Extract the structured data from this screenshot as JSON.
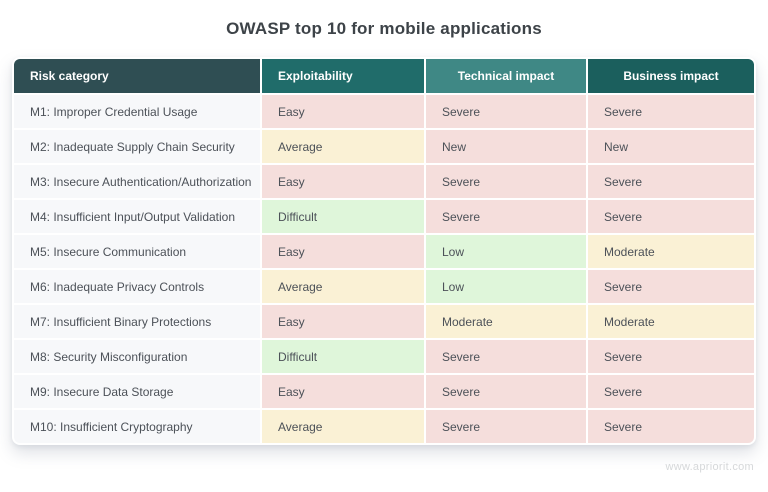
{
  "title": "OWASP top 10 for mobile applications",
  "watermark": "www.apriorit.com",
  "colors": {
    "page_bg": "#FFFFFF",
    "title_text": "#3D4348",
    "header_text": "#FFFFFF",
    "body_text": "#4C5158",
    "row_label_bg": "#F7F8FA",
    "header_bg": [
      "#2F4E53",
      "#206C6A",
      "#3F8885",
      "#1B5F5D"
    ],
    "severity": {
      "Easy": "#F5DEDC",
      "Average": "#FAF1D5",
      "Difficult": "#DFF6DA",
      "Severe": "#F5DEDC",
      "New": "#F5DEDC",
      "Low": "#DFF6DA",
      "Moderate": "#FAF1D5"
    }
  },
  "chart_data": {
    "type": "table",
    "title": "OWASP top 10 for mobile applications",
    "columns": [
      "Risk category",
      "Exploitability",
      "Technical impact",
      "Business impact"
    ],
    "rows": [
      [
        "M1: Improper Credential Usage",
        "Easy",
        "Severe",
        "Severe"
      ],
      [
        "M2: Inadequate Supply Chain Security",
        "Average",
        "New",
        "New"
      ],
      [
        "M3: Insecure Authentication/Authorization",
        "Easy",
        "Severe",
        "Severe"
      ],
      [
        "M4: Insufficient Input/Output Validation",
        "Difficult",
        "Severe",
        "Severe"
      ],
      [
        "M5: Insecure Communication",
        "Easy",
        "Low",
        "Moderate"
      ],
      [
        "M6: Inadequate Privacy Controls",
        "Average",
        "Low",
        "Severe"
      ],
      [
        "M7: Insufficient Binary Protections",
        "Easy",
        "Moderate",
        "Moderate"
      ],
      [
        "M8: Security Misconfiguration",
        "Difficult",
        "Severe",
        "Severe"
      ],
      [
        "M9: Insecure Data Storage",
        "Easy",
        "Severe",
        "Severe"
      ],
      [
        "M10: Insufficient Cryptography",
        "Average",
        "Severe",
        "Severe"
      ]
    ]
  }
}
